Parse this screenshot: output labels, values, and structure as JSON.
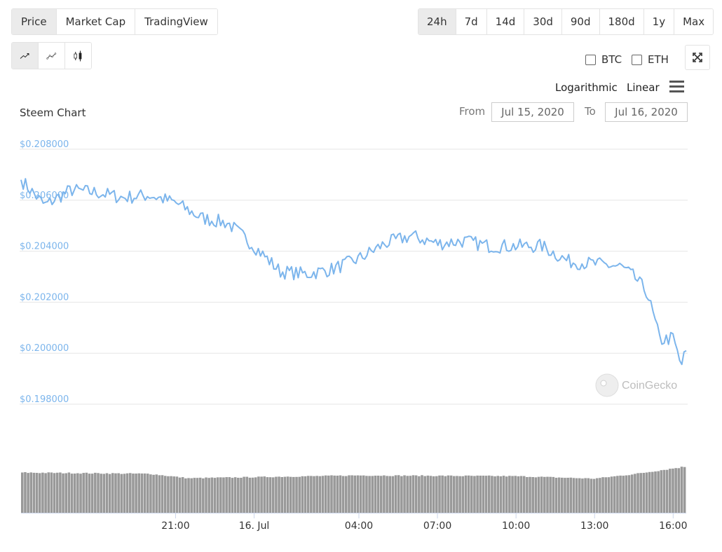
{
  "tabs": {
    "type": [
      {
        "label": "Price",
        "active": true
      },
      {
        "label": "Market Cap",
        "active": false
      },
      {
        "label": "TradingView",
        "active": false
      }
    ],
    "range": [
      {
        "label": "24h",
        "active": true
      },
      {
        "label": "7d",
        "active": false
      },
      {
        "label": "14d",
        "active": false
      },
      {
        "label": "30d",
        "active": false
      },
      {
        "label": "90d",
        "active": false
      },
      {
        "label": "180d",
        "active": false
      },
      {
        "label": "1y",
        "active": false
      },
      {
        "label": "Max",
        "active": false
      }
    ],
    "style_icons": [
      "line-chart-icon",
      "line-points-chart-icon",
      "candlestick-icon"
    ]
  },
  "compare": [
    {
      "label": "BTC",
      "checked": false
    },
    {
      "label": "ETH",
      "checked": false
    }
  ],
  "scale_options": {
    "log": "Logarithmic",
    "linear": "Linear"
  },
  "date_range": {
    "from_label": "From",
    "from": "Jul 15, 2020",
    "to_label": "To",
    "to": "Jul 16, 2020"
  },
  "watermark": "CoinGecko",
  "colors": {
    "line": "#7cb5ec",
    "axis_label": "#7cb5ec",
    "grid": "#e6e6e6",
    "volume": "#999999",
    "active_tab": "#ebebeb"
  },
  "chart_data": {
    "type": "line",
    "title": "Steem Chart",
    "y_ticks": [
      "$0.208000",
      "$0.206000",
      "$0.204000",
      "$0.202000",
      "$0.200000",
      "$0.198000"
    ],
    "ylim": [
      0.198,
      0.208
    ],
    "x_ticks": [
      "21:00",
      "16. Jul",
      "04:00",
      "07:00",
      "10:00",
      "13:00",
      "16:00"
    ],
    "x_tick_hours": [
      3,
      6,
      10,
      13,
      16,
      19,
      22
    ],
    "x_range_hours": [
      -2.9,
      22.5
    ],
    "grid": true,
    "legend": "none",
    "series": [
      {
        "x_hours": [
          -2.9,
          -2.0,
          -1.0,
          0.0,
          1.0,
          2.0,
          3.0,
          4.0,
          5.0,
          6.0,
          7.0,
          8.0,
          9.0,
          10.0,
          11.0,
          12.0,
          13.0,
          14.0,
          15.0,
          16.0,
          17.0,
          18.0,
          19.0,
          20.0,
          20.5,
          21.0,
          21.5,
          22.0,
          22.3,
          22.5
        ],
        "values": [
          0.2068,
          0.2058,
          0.2064,
          0.2063,
          0.2061,
          0.2062,
          0.2059,
          0.2053,
          0.2051,
          0.2042,
          0.2032,
          0.2031,
          0.2033,
          0.2037,
          0.2043,
          0.2046,
          0.2043,
          0.2044,
          0.2042,
          0.2042,
          0.2042,
          0.2036,
          0.2035,
          0.2034,
          0.203,
          0.2024,
          0.2005,
          0.2006,
          0.1995,
          0.2001
        ]
      }
    ],
    "volume": {
      "x_hours": [
        -2.9,
        2.0,
        3.5,
        10.0,
        16.0,
        19.0,
        20.5,
        22.5
      ],
      "relative": [
        1.0,
        0.97,
        0.86,
        0.93,
        0.91,
        0.85,
        0.96,
        1.15
      ]
    }
  }
}
